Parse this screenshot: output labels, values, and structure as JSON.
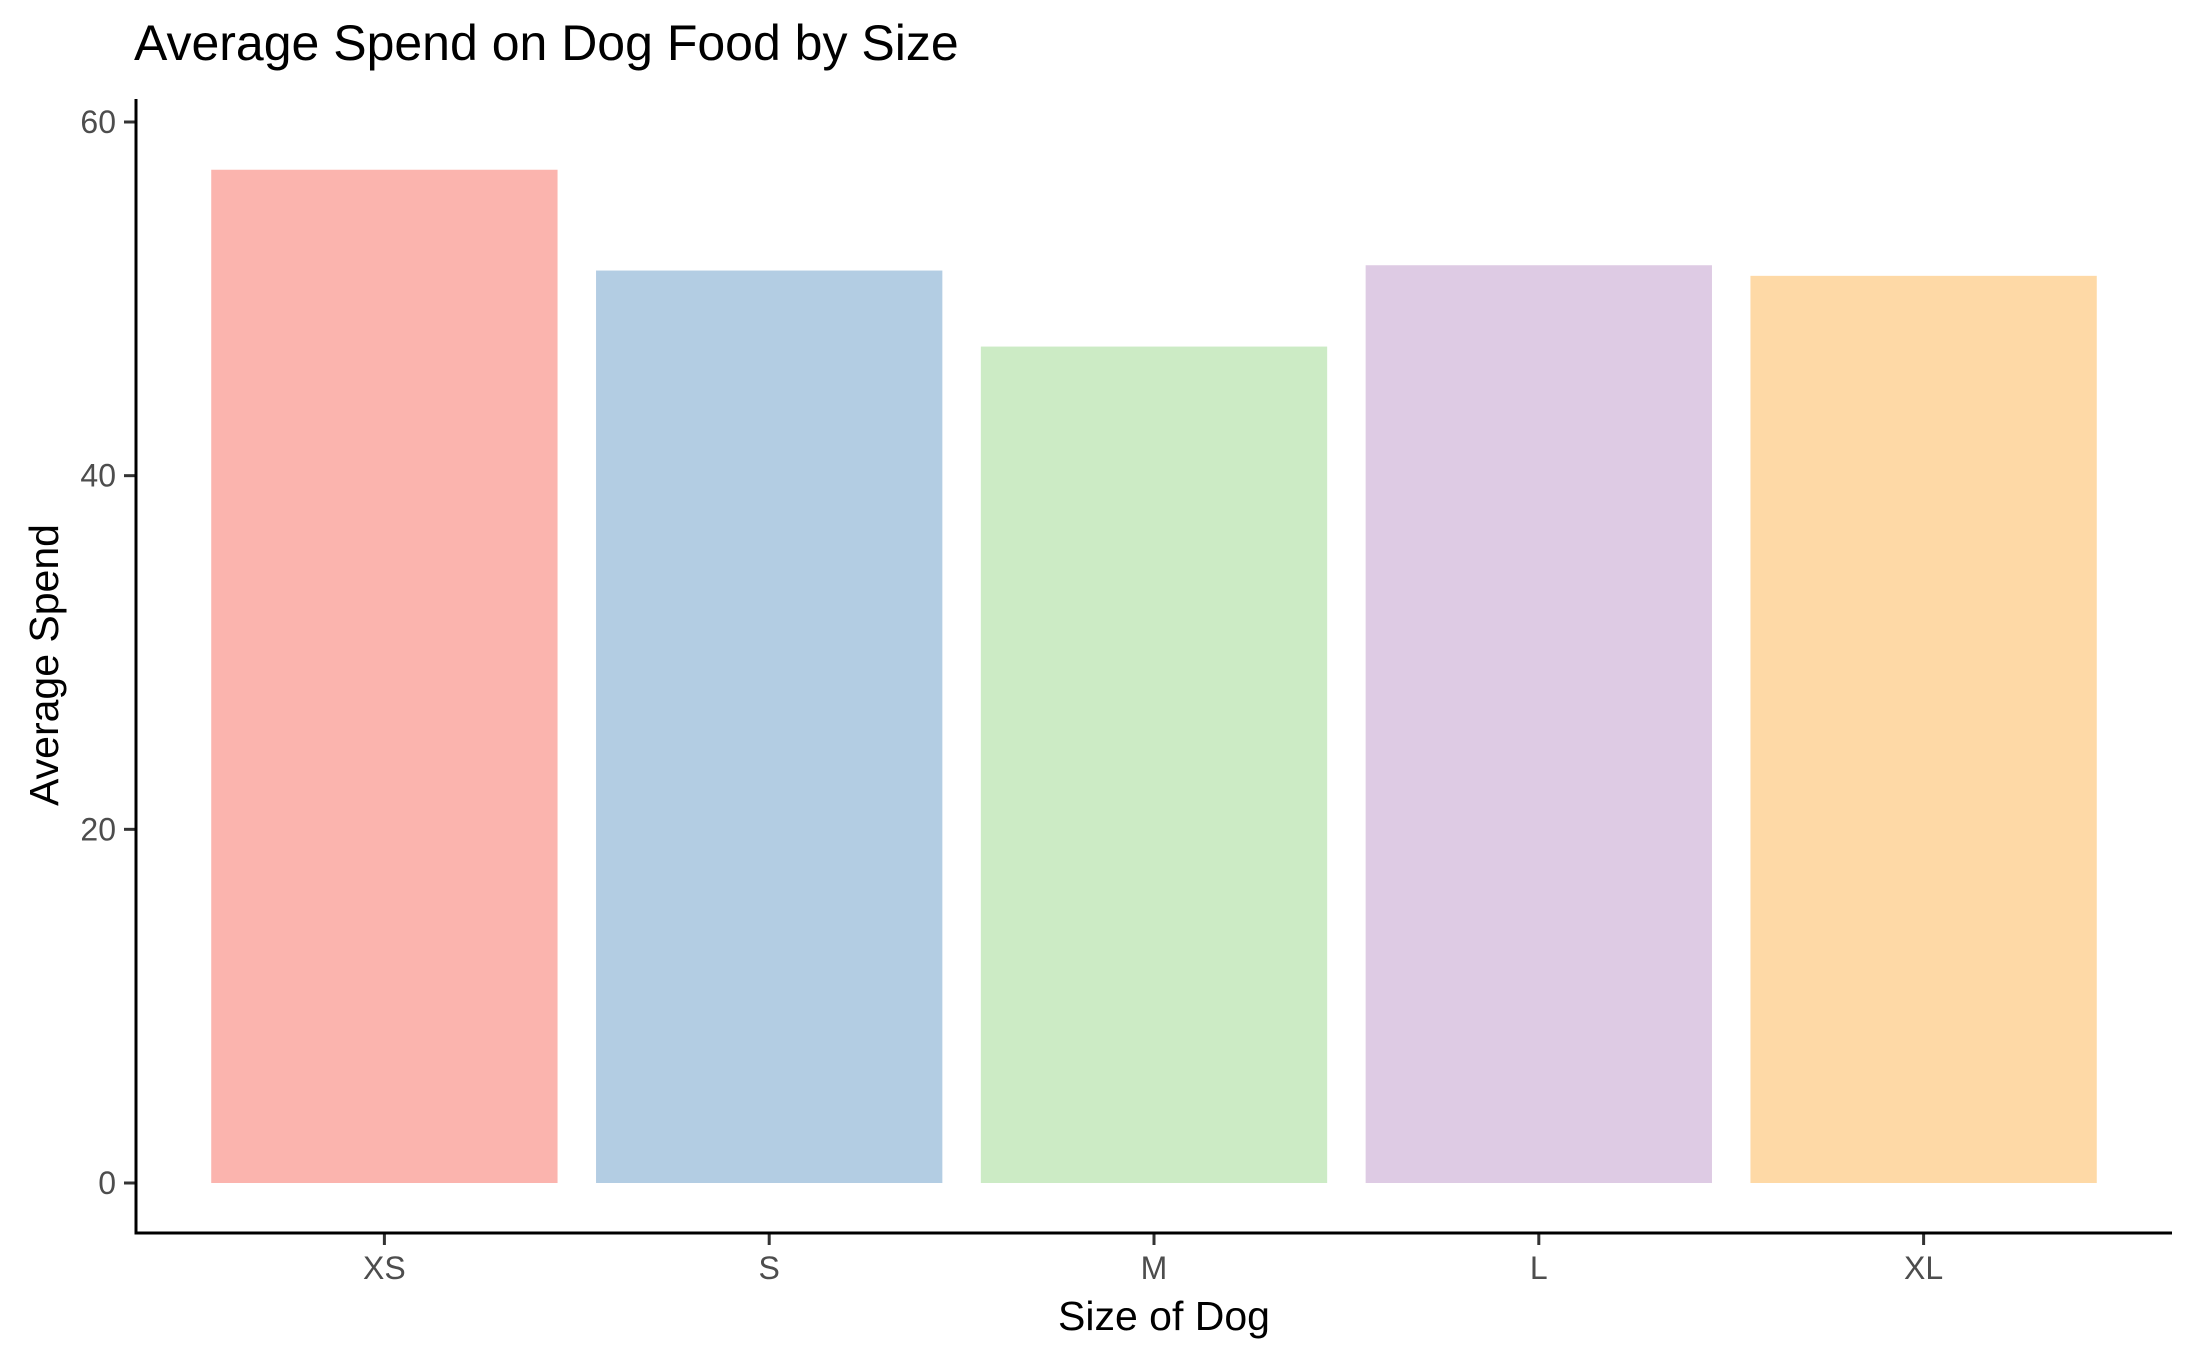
{
  "chart_data": {
    "type": "bar",
    "title": "Average Spend on Dog Food by Size",
    "xlabel": "Size of Dog",
    "ylabel": "Average Spend",
    "categories": [
      "XS",
      "S",
      "M",
      "L",
      "XL"
    ],
    "values": [
      57.3,
      51.6,
      47.3,
      51.9,
      51.3
    ],
    "colors": [
      "#FBB4AE",
      "#B3CDE3",
      "#CCEBC5",
      "#DECBE4",
      "#FED9A6"
    ],
    "ylim": [
      0,
      60
    ],
    "yticks": [
      0,
      20,
      40,
      60
    ],
    "grid": false,
    "legend": "none"
  }
}
